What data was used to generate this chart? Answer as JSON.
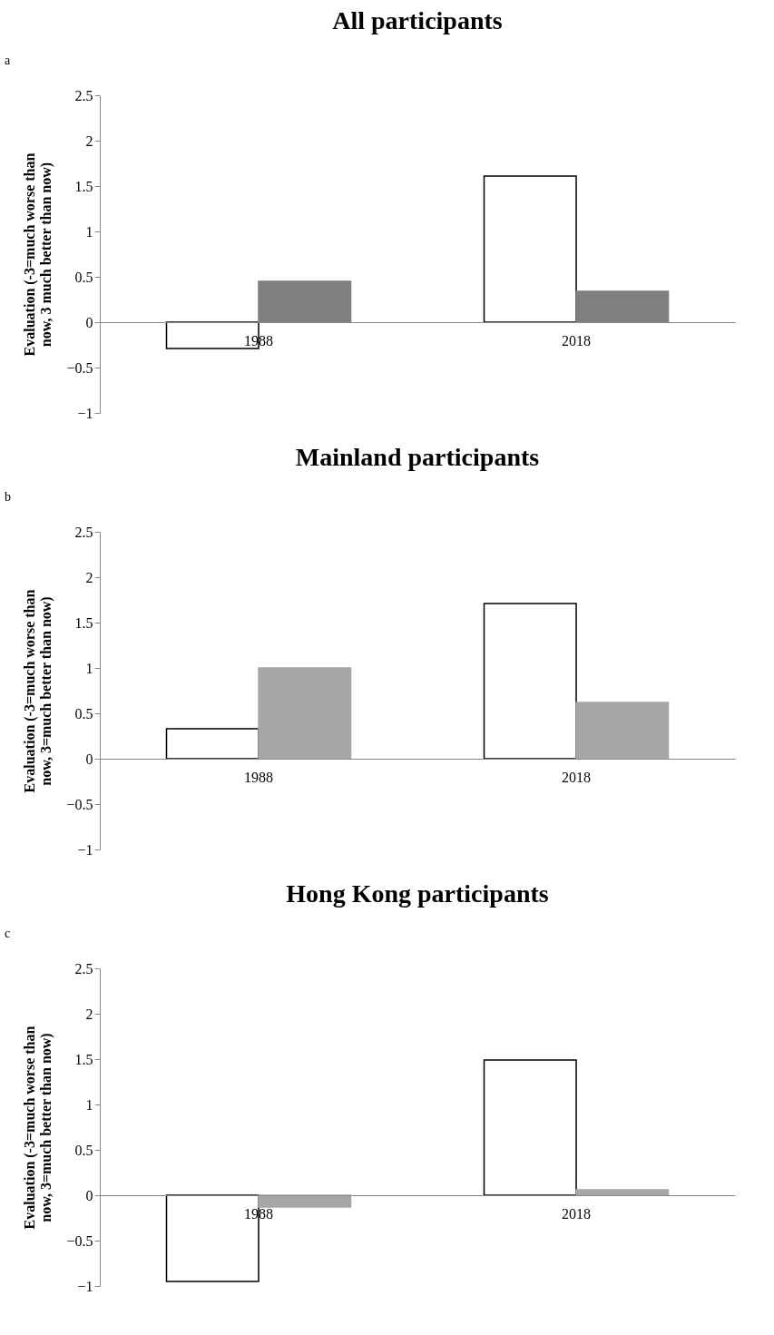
{
  "chart_data": [
    {
      "type": "bar",
      "title": "All participants",
      "ylabel": "Evaluation (-3=much worse than now, 3 much better than now)",
      "annotations": [
        "a"
      ],
      "categories": [
        "1988",
        "2018"
      ],
      "series": [
        {
          "color": "#ffffff",
          "values": [
            -0.29,
            1.61
          ]
        },
        {
          "color": "#7f7f7f",
          "values": [
            0.45,
            0.34
          ]
        }
      ],
      "ylim": [
        -1,
        2.5
      ],
      "yticks": [
        -1,
        -0.5,
        0,
        0.5,
        1,
        1.5,
        2,
        2.5
      ],
      "grid": false
    },
    {
      "type": "bar",
      "title": "Mainland participants",
      "ylabel": "Evaluation (-3=much worse than now, 3=much better than now)",
      "annotations": [
        "b"
      ],
      "categories": [
        "1988",
        "2018"
      ],
      "series": [
        {
          "color": "#ffffff",
          "values": [
            0.33,
            1.71
          ]
        },
        {
          "color": "#a6a6a6",
          "values": [
            1.0,
            0.62
          ]
        }
      ],
      "ylim": [
        -1,
        2.5
      ],
      "yticks": [
        -1,
        -0.5,
        0,
        0.5,
        1,
        1.5,
        2,
        2.5
      ],
      "grid": false
    },
    {
      "type": "bar",
      "title": "Hong Kong participants",
      "ylabel": "Evaluation (-3=much worse than now, 3=much better than now)",
      "annotations": [
        "c"
      ],
      "categories": [
        "1988",
        "2018"
      ],
      "series": [
        {
          "color": "#ffffff",
          "values": [
            -0.95,
            1.49
          ]
        },
        {
          "color": "#a6a6a6",
          "values": [
            -0.13,
            0.06
          ]
        }
      ],
      "ylim": [
        -1,
        2.5
      ],
      "yticks": [
        -1,
        -0.5,
        0,
        0.5,
        1,
        1.5,
        2,
        2.5
      ],
      "grid": false
    }
  ]
}
